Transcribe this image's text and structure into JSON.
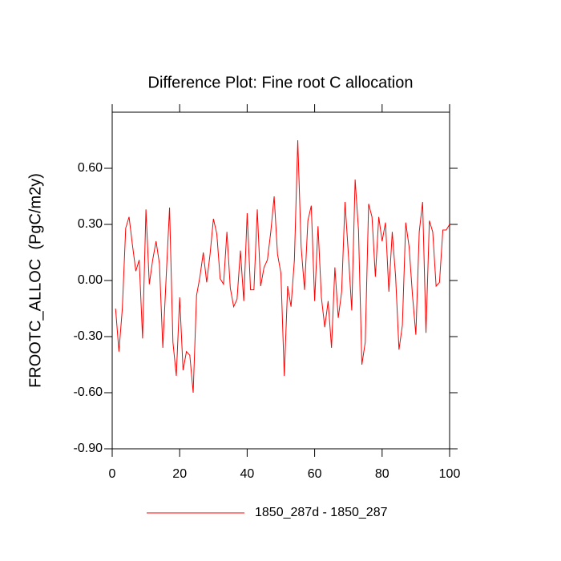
{
  "chart_data": {
    "type": "line",
    "title": "Difference Plot: Fine root C allocation",
    "y_label": "FROOTC_ALLOC  (PgC/m2y)",
    "x": [
      1,
      2,
      3,
      4,
      5,
      6,
      7,
      8,
      9,
      10,
      11,
      12,
      13,
      14,
      15,
      16,
      17,
      18,
      19,
      20,
      21,
      22,
      23,
      24,
      25,
      26,
      27,
      28,
      29,
      30,
      31,
      32,
      33,
      34,
      35,
      36,
      37,
      38,
      39,
      40,
      41,
      42,
      43,
      44,
      45,
      46,
      47,
      48,
      49,
      50,
      51,
      52,
      53,
      54,
      55,
      56,
      57,
      58,
      59,
      60,
      61,
      62,
      63,
      64,
      65,
      66,
      67,
      68,
      69,
      70,
      71,
      72,
      73,
      74,
      75,
      76,
      77,
      78,
      79,
      80,
      81,
      82,
      83,
      84,
      85,
      86,
      87,
      88,
      89,
      90,
      91,
      92,
      93,
      94,
      95,
      96,
      97,
      98,
      99,
      100
    ],
    "series": [
      {
        "name": "1850_287d - 1850_287",
        "color": "#ff0000",
        "values": [
          -0.15,
          -0.38,
          -0.15,
          0.28,
          0.34,
          0.19,
          0.05,
          0.11,
          -0.31,
          0.38,
          -0.02,
          0.11,
          0.21,
          0.09,
          -0.36,
          0.02,
          0.39,
          -0.33,
          -0.51,
          -0.09,
          -0.48,
          -0.38,
          -0.4,
          -0.6,
          -0.08,
          0.02,
          0.15,
          -0.01,
          0.14,
          0.33,
          0.25,
          0.01,
          -0.02,
          0.26,
          -0.04,
          -0.14,
          -0.1,
          0.16,
          -0.11,
          0.36,
          -0.05,
          -0.05,
          0.38,
          -0.03,
          0.07,
          0.11,
          0.26,
          0.45,
          0.14,
          0.04,
          -0.51,
          -0.03,
          -0.14,
          0.11,
          0.75,
          0.18,
          -0.05,
          0.32,
          0.4,
          -0.11,
          0.29,
          -0.09,
          -0.25,
          -0.11,
          -0.36,
          0.07,
          -0.2,
          -0.06,
          0.42,
          0.14,
          -0.16,
          0.54,
          0.27,
          -0.45,
          -0.33,
          0.41,
          0.34,
          0.02,
          0.34,
          0.21,
          0.31,
          -0.06,
          0.26,
          0.02,
          -0.37,
          -0.24,
          0.31,
          0.18,
          -0.08,
          -0.29,
          0.26,
          0.42,
          -0.28,
          0.32,
          0.26,
          -0.03,
          -0.01,
          0.27,
          0.27,
          0.3
        ]
      }
    ],
    "xlim": [
      0,
      100
    ],
    "xticks": [
      0,
      20,
      40,
      60,
      80,
      100
    ],
    "ylim": [
      -0.9,
      0.9
    ],
    "yticks": [
      {
        "value": -0.9,
        "label": "-0.90"
      },
      {
        "value": -0.6,
        "label": "-0.60"
      },
      {
        "value": -0.3,
        "label": "-0.30"
      },
      {
        "value": 0,
        "label": "0.00"
      },
      {
        "value": 0.3,
        "label": "0.30"
      },
      {
        "value": 0.6,
        "label": "0.60"
      }
    ],
    "legend": "bottom"
  }
}
